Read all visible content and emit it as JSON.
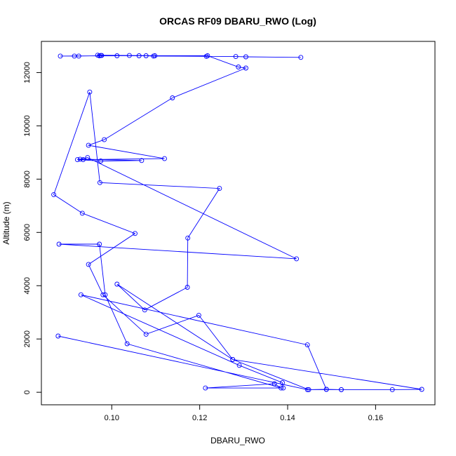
{
  "chart_data": {
    "type": "line",
    "title": "ORCAS RF09 DBARU_RWO (Log)",
    "xlabel": "DBARU_RWO",
    "ylabel": "Altitude (m)",
    "xlim": [
      0.084,
      0.1735
    ],
    "ylim": [
      -470,
      13170
    ],
    "xticks": [
      0.1,
      0.12,
      0.14,
      0.16
    ],
    "xtick_labels": [
      "0.10",
      "0.12",
      "0.14",
      "0.16"
    ],
    "yticks": [
      0,
      2000,
      4000,
      6000,
      8000,
      10000,
      12000
    ],
    "ytick_labels": [
      "0",
      "2000",
      "4000",
      "6000",
      "8000",
      "10000",
      "12000"
    ],
    "grid": false,
    "line_color": "#0000ff",
    "series": [
      {
        "x": [
          0.143,
          0.1305,
          0.1282,
          0.1215,
          0.1095,
          0.1078,
          0.1062,
          0.0977,
          0.0972,
          0.0925,
          0.0915,
          0.0883,
          0.1012,
          0.0975,
          0.0968,
          0.104,
          0.1098,
          0.1218,
          0.1288,
          0.1305,
          0.1138,
          0.0983,
          0.0947,
          0.112,
          0.0935,
          0.0928,
          0.1068,
          0.0975,
          0.0922,
          0.0945,
          0.142,
          0.088,
          0.0972,
          0.0985,
          0.1035,
          0.1385,
          0.137,
          0.1213,
          0.139,
          0.1388,
          0.129,
          0.093,
          0.1445,
          0.1488,
          0.1522,
          0.1638,
          0.1705,
          0.1275,
          0.1012,
          0.1075,
          0.1172,
          0.1173,
          0.1245,
          0.0973,
          0.095,
          0.0868,
          0.0933,
          0.1053,
          0.0947,
          0.098,
          0.1078,
          0.1198,
          0.1275,
          0.1448,
          0.1522,
          0.1488,
          0.1445,
          0.0878
        ],
        "y": [
          12570,
          12590,
          12600,
          12610,
          12620,
          12630,
          12630,
          12640,
          12630,
          12620,
          12620,
          12620,
          12630,
          12640,
          12650,
          12640,
          12630,
          12630,
          12210,
          12170,
          11050,
          9480,
          9270,
          8770,
          8730,
          8750,
          8700,
          8680,
          8730,
          8810,
          5010,
          5560,
          5560,
          3660,
          1820,
          160,
          320,
          160,
          160,
          360,
          1010,
          3660,
          1780,
          110,
          100,
          100,
          110,
          1230,
          4060,
          3090,
          3940,
          5790,
          7650,
          7870,
          11270,
          7420,
          6720,
          5960,
          4800,
          3660,
          2180,
          2890,
          1230,
          100,
          100,
          110,
          100,
          2110
        ]
      }
    ]
  }
}
